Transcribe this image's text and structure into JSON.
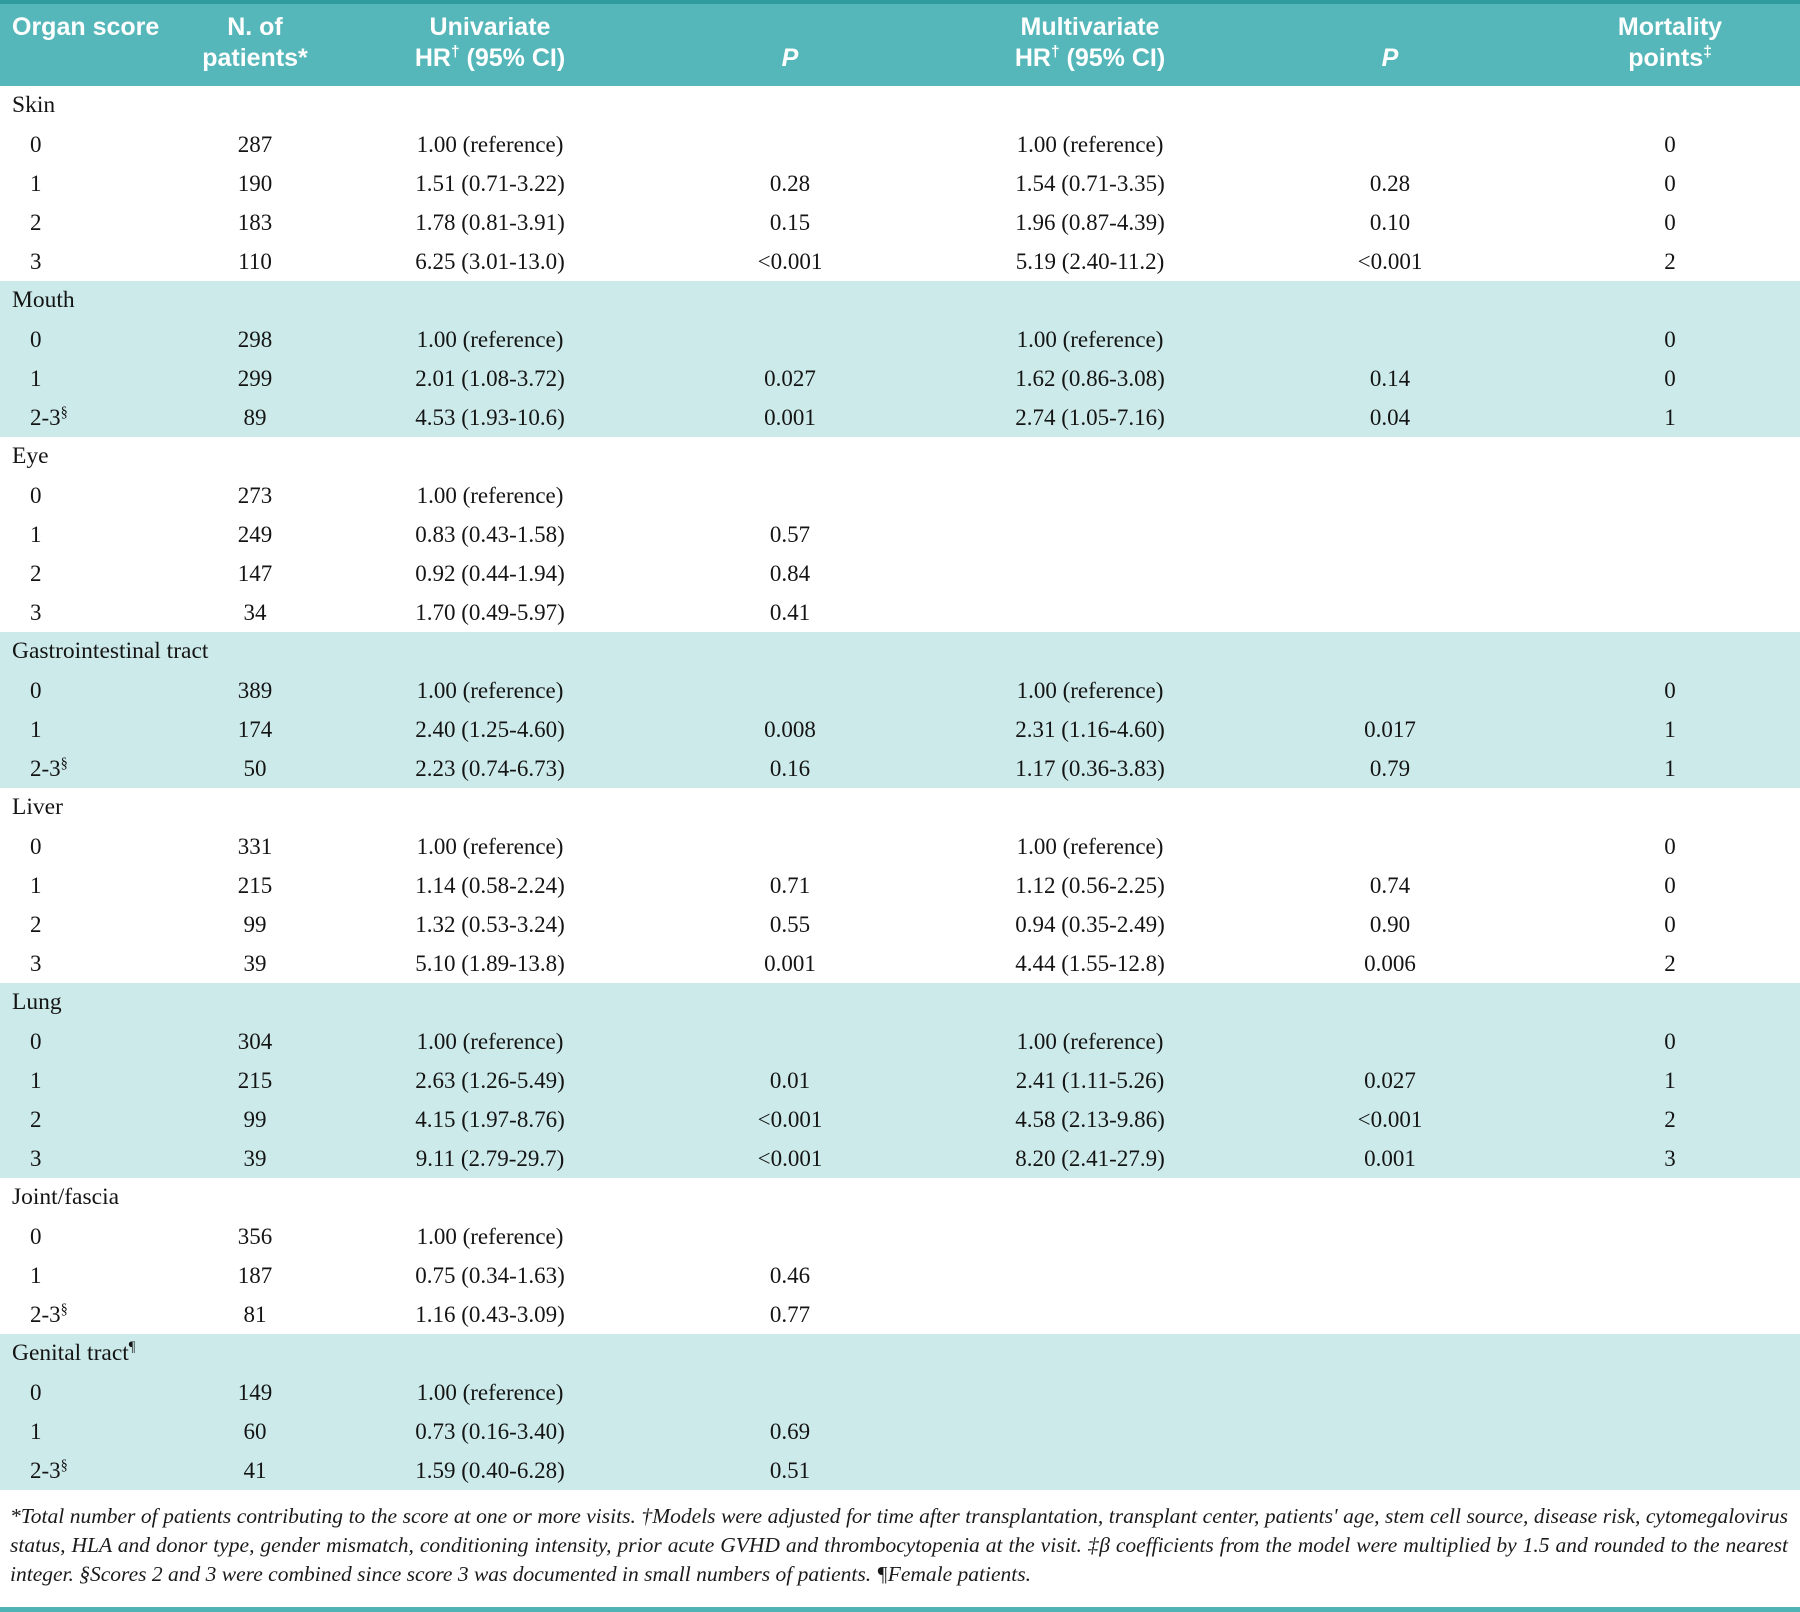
{
  "colors": {
    "header_bg": "#55b7b9",
    "header_text": "#ffffff",
    "band_bg": "#cdeaea",
    "top_rule": "#2f9b9d",
    "bottom_rule": "#4fb2b4"
  },
  "table": {
    "columns": [
      {
        "label": "Organ score",
        "italic": false
      },
      {
        "label": "N. of\npatients*",
        "italic": false
      },
      {
        "label": "Univariate\nHR† (95% CI)",
        "italic": false
      },
      {
        "label": "P",
        "italic": true
      },
      {
        "label": "Multivariate\nHR† (95% CI)",
        "italic": false
      },
      {
        "label": "P",
        "italic": true
      },
      {
        "label": "Mortality\npoints‡",
        "italic": false
      }
    ],
    "cell_names": [
      "organ-score",
      "n-patients",
      "univariate-hr",
      "univariate-p",
      "multivariate-hr",
      "multivariate-p",
      "mortality-points"
    ],
    "sections": [
      {
        "name": "Skin",
        "shaded": false,
        "rows": [
          [
            "0",
            "287",
            "1.00 (reference)",
            "",
            "1.00 (reference)",
            "",
            "0"
          ],
          [
            "1",
            "190",
            "1.51 (0.71-3.22)",
            "0.28",
            "1.54 (0.71-3.35)",
            "0.28",
            "0"
          ],
          [
            "2",
            "183",
            "1.78 (0.81-3.91)",
            "0.15",
            "1.96 (0.87-4.39)",
            "0.10",
            "0"
          ],
          [
            "3",
            "110",
            "6.25 (3.01-13.0)",
            "<0.001",
            "5.19 (2.40-11.2)",
            "<0.001",
            "2"
          ]
        ]
      },
      {
        "name": "Mouth",
        "shaded": true,
        "rows": [
          [
            "0",
            "298",
            "1.00 (reference)",
            "",
            "1.00 (reference)",
            "",
            "0"
          ],
          [
            "1",
            "299",
            "2.01 (1.08-3.72)",
            "0.027",
            "1.62 (0.86-3.08)",
            "0.14",
            "0"
          ],
          [
            "2-3§",
            "89",
            "4.53 (1.93-10.6)",
            "0.001",
            "2.74 (1.05-7.16)",
            "0.04",
            "1"
          ]
        ]
      },
      {
        "name": "Eye",
        "shaded": false,
        "rows": [
          [
            "0",
            "273",
            "1.00 (reference)",
            "",
            "",
            "",
            ""
          ],
          [
            "1",
            "249",
            "0.83 (0.43-1.58)",
            "0.57",
            "",
            "",
            ""
          ],
          [
            "2",
            "147",
            "0.92 (0.44-1.94)",
            "0.84",
            "",
            "",
            ""
          ],
          [
            "3",
            "34",
            "1.70 (0.49-5.97)",
            "0.41",
            "",
            "",
            ""
          ]
        ]
      },
      {
        "name": "Gastrointestinal tract",
        "shaded": true,
        "rows": [
          [
            "0",
            "389",
            "1.00 (reference)",
            "",
            "1.00 (reference)",
            "",
            "0"
          ],
          [
            "1",
            "174",
            "2.40 (1.25-4.60)",
            "0.008",
            "2.31 (1.16-4.60)",
            "0.017",
            "1"
          ],
          [
            "2-3§",
            "50",
            "2.23 (0.74-6.73)",
            "0.16",
            "1.17 (0.36-3.83)",
            "0.79",
            "1"
          ]
        ]
      },
      {
        "name": "Liver",
        "shaded": false,
        "rows": [
          [
            "0",
            "331",
            "1.00 (reference)",
            "",
            "1.00 (reference)",
            "",
            "0"
          ],
          [
            "1",
            "215",
            "1.14 (0.58-2.24)",
            "0.71",
            "1.12 (0.56-2.25)",
            "0.74",
            "0"
          ],
          [
            "2",
            "99",
            "1.32 (0.53-3.24)",
            "0.55",
            "0.94 (0.35-2.49)",
            "0.90",
            "0"
          ],
          [
            "3",
            "39",
            "5.10 (1.89-13.8)",
            "0.001",
            "4.44 (1.55-12.8)",
            "0.006",
            "2"
          ]
        ]
      },
      {
        "name": "Lung",
        "shaded": true,
        "rows": [
          [
            "0",
            "304",
            "1.00 (reference)",
            "",
            "1.00 (reference)",
            "",
            "0"
          ],
          [
            "1",
            "215",
            "2.63 (1.26-5.49)",
            "0.01",
            "2.41 (1.11-5.26)",
            "0.027",
            "1"
          ],
          [
            "2",
            "99",
            "4.15 (1.97-8.76)",
            "<0.001",
            "4.58 (2.13-9.86)",
            "<0.001",
            "2"
          ],
          [
            "3",
            "39",
            "9.11 (2.79-29.7)",
            "<0.001",
            "8.20 (2.41-27.9)",
            "0.001",
            "3"
          ]
        ]
      },
      {
        "name": "Joint/fascia",
        "shaded": false,
        "rows": [
          [
            "0",
            "356",
            "1.00 (reference)",
            "",
            "",
            "",
            ""
          ],
          [
            "1",
            "187",
            "0.75 (0.34-1.63)",
            "0.46",
            "",
            "",
            ""
          ],
          [
            "2-3§",
            "81",
            "1.16 (0.43-3.09)",
            "0.77",
            "",
            "",
            ""
          ]
        ]
      },
      {
        "name": "Genital tract¶",
        "shaded": true,
        "rows": [
          [
            "0",
            "149",
            "1.00 (reference)",
            "",
            "",
            "",
            ""
          ],
          [
            "1",
            "60",
            "0.73 (0.16-3.40)",
            "0.69",
            "",
            "",
            ""
          ],
          [
            "2-3§",
            "41",
            "1.59 (0.40-6.28)",
            "0.51",
            "",
            "",
            ""
          ]
        ]
      }
    ],
    "footnote": "*Total number of patients contributing to the score at one or more visits. †Models were adjusted for time after transplantation, transplant center, patients' age, stem cell source, disease risk, cytomegalovirus status, HLA and donor type, gender mismatch, conditioning intensity, prior acute GVHD and thrombocytopenia at the visit. ‡β coefficients from the model were multiplied by 1.5 and rounded to the nearest integer. §Scores 2 and 3 were combined since score 3 was documented in small numbers of patients. ¶Female patients."
  }
}
